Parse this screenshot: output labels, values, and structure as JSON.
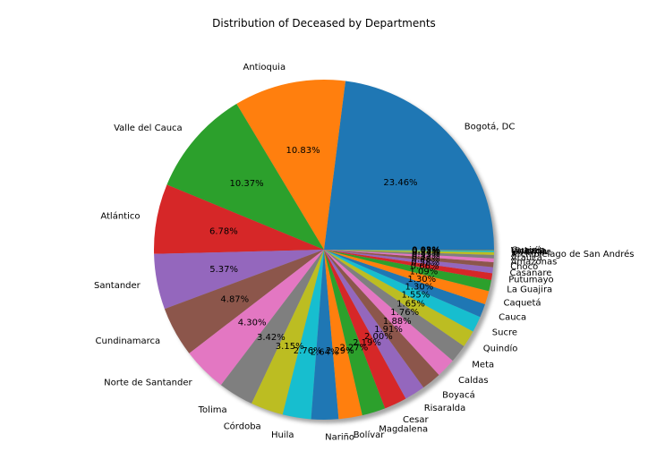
{
  "chart_data": {
    "type": "pie",
    "title": "Distribution of Deceased by Departments",
    "start_angle": 0,
    "direction": "counterclockwise",
    "shadow": true,
    "categories": [
      "Bogotá, DC",
      "Antioquia",
      "Valle del Cauca",
      "Atlántico",
      "Santander",
      "Cundinamarca",
      "Norte de Santander",
      "Tolima",
      "Córdoba",
      "Huila",
      "Nariño",
      "Bolívar",
      "Magdalena",
      "Cesar",
      "Risaralda",
      "Boyacá",
      "Caldas",
      "Meta",
      "Quindío",
      "Sucre",
      "Cauca",
      "Caquetá",
      "La Guajira",
      "Putumayo",
      "Casanare",
      "Chocó",
      "Amazonas",
      "Arauca",
      "Archipiélago de San Andrés",
      "Guaviare",
      "Vichada",
      "Vaupés",
      "Guainía"
    ],
    "values": [
      23.46,
      10.83,
      10.37,
      6.78,
      5.37,
      4.87,
      4.3,
      3.42,
      3.15,
      2.76,
      2.64,
      2.29,
      2.27,
      2.19,
      2.0,
      1.91,
      1.88,
      1.76,
      1.65,
      1.55,
      1.3,
      1.3,
      1.09,
      0.66,
      0.58,
      0.48,
      0.37,
      0.33,
      0.27,
      0.13,
      0.05,
      0.03,
      0.02
    ],
    "percent_labels": [
      "23.46%",
      "10.83%",
      "10.37%",
      "6.78%",
      "5.37%",
      "4.87%",
      "4.30%",
      "3.42%",
      "3.15%",
      "2.76%",
      "2.64%",
      "2.29%",
      "2.27%",
      "2.19%",
      "2.00%",
      "1.91%",
      "1.88%",
      "1.76%",
      "1.65%",
      "1.55%",
      "1.30%",
      "1.30%",
      "1.09%",
      "0.66%",
      "0.58%",
      "0.48%",
      "0.37%",
      "0.33%",
      "0.27%",
      "0.13%",
      "0.05%",
      "0.03%",
      "0.02%"
    ],
    "colors": [
      "#1f77b4",
      "#ff7f0e",
      "#2ca02c",
      "#d62728",
      "#9467bd",
      "#8c564b",
      "#e377c2",
      "#7f7f7f",
      "#bcbd22",
      "#17becf"
    ]
  }
}
